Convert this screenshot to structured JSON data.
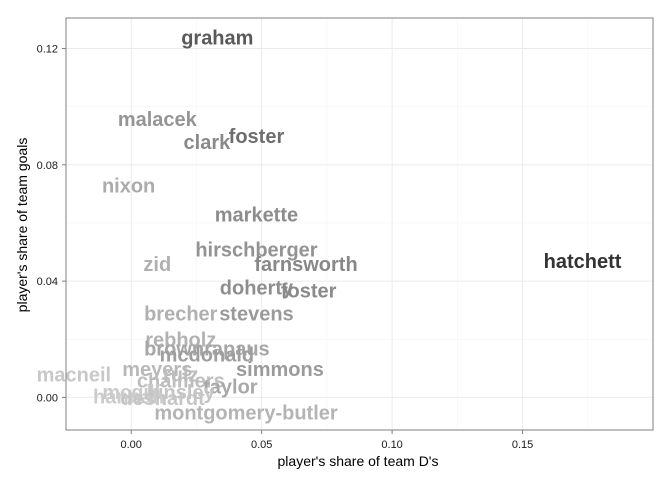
{
  "chart_data": {
    "type": "scatter",
    "title": "",
    "xlabel": "player's share of team D's",
    "ylabel": "player's share of team goals",
    "xlim": [
      -0.025,
      0.2
    ],
    "ylim": [
      -0.0112,
      0.1305
    ],
    "x_ticks": [
      0.0,
      0.05,
      0.1,
      0.15
    ],
    "x_tick_labels": [
      "0.00",
      "0.05",
      "0.10",
      "0.15"
    ],
    "y_ticks": [
      0.0,
      0.04,
      0.08,
      0.12
    ],
    "y_tick_labels": [
      "0.00",
      "0.04",
      "0.08",
      "0.12"
    ],
    "grid": true,
    "legend": "none",
    "encoding": "text label at each point; darker gray = larger share",
    "points": [
      {
        "label": "graham",
        "x": 0.033,
        "y": 0.1235,
        "color": "#595959"
      },
      {
        "label": "malacek",
        "x": 0.01,
        "y": 0.0955,
        "color": "#959595"
      },
      {
        "label": "foster",
        "x": 0.048,
        "y": 0.0895,
        "color": "#6e6e6e"
      },
      {
        "label": "clark",
        "x": 0.029,
        "y": 0.0875,
        "color": "#8a8a8a"
      },
      {
        "label": "nixon",
        "x": -0.001,
        "y": 0.0725,
        "color": "#ababab"
      },
      {
        "label": "markette",
        "x": 0.048,
        "y": 0.0625,
        "color": "#8c8c8c"
      },
      {
        "label": "hirschberger",
        "x": 0.048,
        "y": 0.0505,
        "color": "#939393"
      },
      {
        "label": "hatchett",
        "x": 0.173,
        "y": 0.0465,
        "color": "#333333"
      },
      {
        "label": "zid",
        "x": 0.01,
        "y": 0.0455,
        "color": "#b0b0b0"
      },
      {
        "label": "farnsworth",
        "x": 0.067,
        "y": 0.0455,
        "color": "#888888"
      },
      {
        "label": "doherty",
        "x": 0.048,
        "y": 0.0375,
        "color": "#8e8e8e"
      },
      {
        "label": "foster",
        "x": 0.068,
        "y": 0.0365,
        "color": "#8a8a8a"
      },
      {
        "label": "brecher",
        "x": 0.019,
        "y": 0.0285,
        "color": "#b0b0b0"
      },
      {
        "label": "stevens",
        "x": 0.048,
        "y": 0.0285,
        "color": "#9a9a9a"
      },
      {
        "label": "rebholz",
        "x": 0.019,
        "y": 0.0195,
        "color": "#b2b2b2"
      },
      {
        "label": "brownrapaus",
        "x": 0.029,
        "y": 0.0165,
        "color": "#a6a6a6"
      },
      {
        "label": "mcdonald",
        "x": 0.029,
        "y": 0.0145,
        "color": "#9e9e9e"
      },
      {
        "label": "meyers",
        "x": 0.01,
        "y": 0.0095,
        "color": "#b8b8b8"
      },
      {
        "label": "simmons",
        "x": 0.057,
        "y": 0.0095,
        "color": "#9b9b9b"
      },
      {
        "label": "macneil",
        "x": -0.022,
        "y": 0.0075,
        "color": "#c8c8c8"
      },
      {
        "label": "ruiz",
        "x": 0.019,
        "y": 0.0075,
        "color": "#bdbdbd"
      },
      {
        "label": "chalmers",
        "x": 0.019,
        "y": 0.0055,
        "color": "#bdbdbd"
      },
      {
        "label": "taylor",
        "x": 0.038,
        "y": 0.0035,
        "color": "#a8a8a8"
      },
      {
        "label": "mcgill",
        "x": 0.0,
        "y": 0.0015,
        "color": "#cacaca"
      },
      {
        "label": "kinsley",
        "x": 0.019,
        "y": 0.0015,
        "color": "#c4c4c4"
      },
      {
        "label": "hannah",
        "x": -0.001,
        "y": 0.0,
        "color": "#cccccc"
      },
      {
        "label": "deshardt",
        "x": 0.012,
        "y": -0.0005,
        "color": "#c6c6c6"
      },
      {
        "label": "montgomery-butler",
        "x": 0.044,
        "y": -0.0055,
        "color": "#b4b4b4"
      }
    ]
  }
}
